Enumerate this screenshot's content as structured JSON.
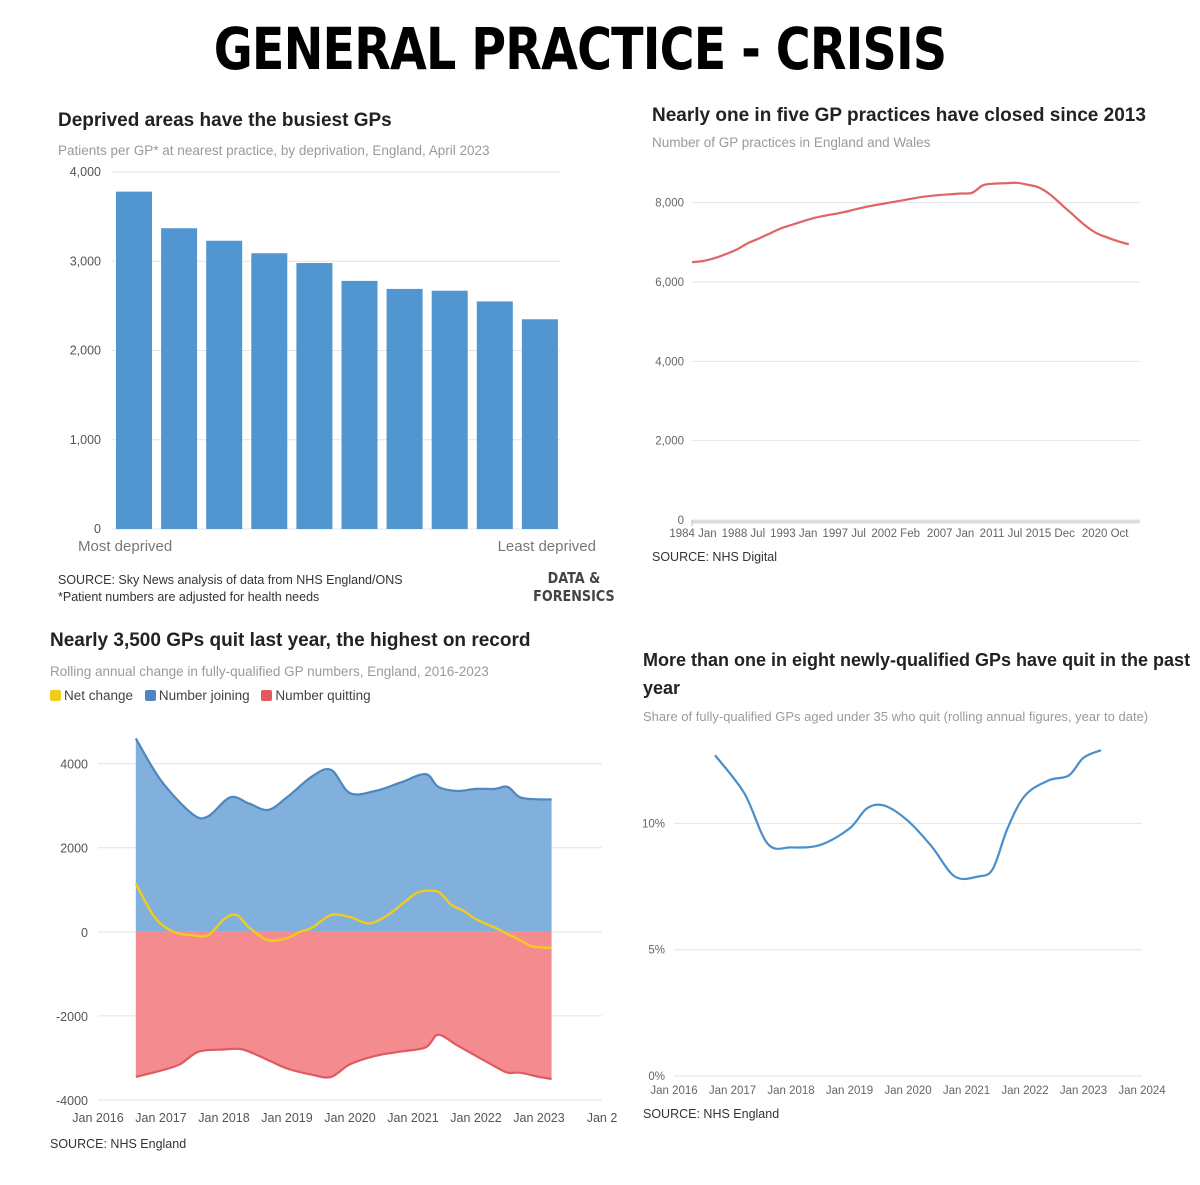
{
  "page_title": "GENERAL PRACTICE - CRISIS",
  "panels": {
    "deprivation": {
      "title": "Deprived areas have the busiest GPs",
      "subtitle": "Patients per GP* at nearest practice, by deprivation, England, April 2023",
      "left_label": "Most deprived",
      "right_label": "Least deprived",
      "source": "SOURCE: Sky News analysis of data from NHS England/ONS",
      "note": "*Patient numbers are adjusted for health needs",
      "logo_line1": "DATA &",
      "logo_line2": "FORENSICS"
    },
    "practices": {
      "title": "Nearly one in five GP practices have closed since 2013",
      "subtitle": "Number of GP practices in England and Wales",
      "source": "SOURCE: NHS Digital"
    },
    "quits": {
      "title": "Nearly 3,500 GPs quit last year, the highest on record",
      "subtitle": "Rolling annual change in fully-qualified GP numbers, England, 2016-2023",
      "legend": [
        "Net change",
        "Number joining",
        "Number quitting"
      ],
      "source": "SOURCE: NHS England"
    },
    "young": {
      "title_line1": "More than one in eight newly-qualified GPs have quit in the past",
      "title_line2": "year",
      "subtitle": "Share of fully-qualified GPs aged under 35 who quit (rolling annual figures, year to date)",
      "source": "SOURCE: NHS England"
    }
  },
  "colors": {
    "bar_blue": "#5296d1",
    "practices_red": "#e06466",
    "joining_blue": "#80b0db",
    "joining_line": "#4f86c0",
    "quitting_red": "#f48c8f",
    "quitting_line": "#e05a60",
    "net_yellow": "#f2cb1d",
    "young_line": "#4a8fc9"
  },
  "chart_data": [
    {
      "id": "deprivation",
      "type": "bar",
      "categories": [
        "1",
        "2",
        "3",
        "4",
        "5",
        "6",
        "7",
        "8",
        "9",
        "10"
      ],
      "values": [
        3780,
        3370,
        3230,
        3090,
        2980,
        2780,
        2690,
        2670,
        2550,
        2350
      ],
      "ylim": [
        0,
        4000
      ],
      "yticks": [
        0,
        1000,
        2000,
        3000,
        4000
      ],
      "ytick_labels": [
        "0",
        "1,000",
        "2,000",
        "3,000",
        "4,000"
      ]
    },
    {
      "id": "practices",
      "type": "line",
      "xlim": [
        1984.0,
        2024.0
      ],
      "ylim": [
        0,
        9000
      ],
      "yticks": [
        0,
        2000,
        4000,
        6000,
        8000
      ],
      "ytick_labels": [
        "0",
        "2,000",
        "4,000",
        "6,000",
        "8,000"
      ],
      "xticks": [
        1984.0,
        1988.5,
        1993.0,
        1997.5,
        2002.1,
        2007.0,
        2011.5,
        2015.9,
        2020.8
      ],
      "xtick_labels": [
        "1984 Jan",
        "1988 Jul",
        "1993 Jan",
        "1997 Jul",
        "2002 Feb",
        "2007 Jan",
        "2011 Jul",
        "2015 Dec",
        "2020 Oct"
      ],
      "x": [
        1984,
        1985,
        1986,
        1987,
        1988,
        1989,
        1990,
        1991,
        1992,
        1993,
        1994,
        1995,
        1996,
        1997,
        1998,
        1999,
        2000,
        2001,
        2002,
        2003,
        2004,
        2005,
        2006,
        2007,
        2008,
        2009,
        2010,
        2011,
        2012,
        2013,
        2014,
        2015,
        2016,
        2017,
        2018,
        2019,
        2020,
        2021,
        2022,
        2023
      ],
      "y": [
        6500,
        6530,
        6600,
        6700,
        6820,
        6980,
        7100,
        7230,
        7360,
        7450,
        7540,
        7620,
        7680,
        7730,
        7790,
        7860,
        7920,
        7970,
        8020,
        8070,
        8120,
        8160,
        8190,
        8210,
        8230,
        8250,
        8440,
        8480,
        8490,
        8500,
        8450,
        8380,
        8200,
        7950,
        7700,
        7450,
        7250,
        7130,
        7030,
        6950
      ]
    },
    {
      "id": "quits",
      "type": "area",
      "xlim": [
        2016.0,
        2024.0
      ],
      "ylim": [
        -4000,
        4800
      ],
      "yticks": [
        -4000,
        -2000,
        0,
        2000,
        4000
      ],
      "ytick_labels": [
        "-4000",
        "-2000",
        "0",
        "2000",
        "4000"
      ],
      "xticks": [
        2016,
        2017,
        2018,
        2019,
        2020,
        2021,
        2022,
        2023,
        2024
      ],
      "xtick_labels": [
        "Jan 2016",
        "Jan 2017",
        "Jan 2018",
        "Jan 2019",
        "Jan 2020",
        "Jan 2021",
        "Jan 2022",
        "Jan 2023",
        "Jan 2"
      ],
      "series": [
        {
          "name": "Number joining",
          "x": [
            2016.6,
            2017.0,
            2017.5,
            2017.75,
            2018.1,
            2018.4,
            2018.7,
            2019.0,
            2019.4,
            2019.7,
            2020.0,
            2020.4,
            2020.8,
            2021.2,
            2021.4,
            2021.7,
            2022.0,
            2022.3,
            2022.5,
            2022.7,
            2023.0,
            2023.2
          ],
          "y": [
            4600,
            3600,
            2800,
            2750,
            3200,
            3050,
            2900,
            3200,
            3700,
            3850,
            3300,
            3350,
            3550,
            3750,
            3450,
            3350,
            3400,
            3400,
            3450,
            3200,
            3150,
            3150
          ]
        },
        {
          "name": "Number quitting",
          "x": [
            2016.6,
            2017.0,
            2017.3,
            2017.6,
            2018.0,
            2018.3,
            2018.7,
            2019.0,
            2019.4,
            2019.7,
            2020.0,
            2020.4,
            2020.8,
            2021.2,
            2021.4,
            2021.7,
            2022.0,
            2022.3,
            2022.5,
            2022.7,
            2023.0,
            2023.2
          ],
          "y": [
            -3450,
            -3300,
            -3150,
            -2850,
            -2800,
            -2800,
            -3050,
            -3250,
            -3400,
            -3450,
            -3150,
            -2950,
            -2850,
            -2750,
            -2450,
            -2700,
            -2950,
            -3200,
            -3350,
            -3350,
            -3450,
            -3500
          ]
        },
        {
          "name": "Net change",
          "x": [
            2016.6,
            2016.9,
            2017.2,
            2017.5,
            2017.75,
            2018.0,
            2018.2,
            2018.4,
            2018.7,
            2019.0,
            2019.2,
            2019.4,
            2019.7,
            2020.0,
            2020.3,
            2020.6,
            2020.9,
            2021.1,
            2021.4,
            2021.6,
            2021.8,
            2022.0,
            2022.3,
            2022.5,
            2022.7,
            2022.9,
            2023.2
          ],
          "y": [
            1150,
            350,
            0,
            -80,
            -80,
            300,
            400,
            100,
            -200,
            -150,
            0,
            100,
            400,
            350,
            200,
            400,
            750,
            950,
            950,
            650,
            500,
            300,
            100,
            -50,
            -200,
            -350,
            -380
          ]
        }
      ]
    },
    {
      "id": "young",
      "type": "line",
      "xlim": [
        2016.0,
        2024.0
      ],
      "ylim": [
        0,
        13.5
      ],
      "yticks": [
        0,
        5,
        10
      ],
      "ytick_labels": [
        "0%",
        "5%",
        "10%"
      ],
      "xticks": [
        2016,
        2017,
        2018,
        2019,
        2020,
        2021,
        2022,
        2023,
        2024
      ],
      "xtick_labels": [
        "Jan 2016",
        "Jan 2017",
        "Jan 2018",
        "Jan 2019",
        "Jan 2020",
        "Jan 2021",
        "Jan 2022",
        "Jan 2023",
        "Jan 2024"
      ],
      "x": [
        2016.7,
        2017.2,
        2017.6,
        2018.0,
        2018.5,
        2019.0,
        2019.3,
        2019.6,
        2020.0,
        2020.4,
        2020.8,
        2021.2,
        2021.45,
        2021.7,
        2022.0,
        2022.4,
        2022.75,
        2023.0,
        2023.3
      ],
      "y": [
        12.7,
        11.2,
        9.2,
        9.05,
        9.15,
        9.8,
        10.6,
        10.7,
        10.1,
        9.1,
        7.9,
        7.9,
        8.2,
        9.8,
        11.1,
        11.7,
        11.9,
        12.6,
        12.9
      ]
    }
  ]
}
